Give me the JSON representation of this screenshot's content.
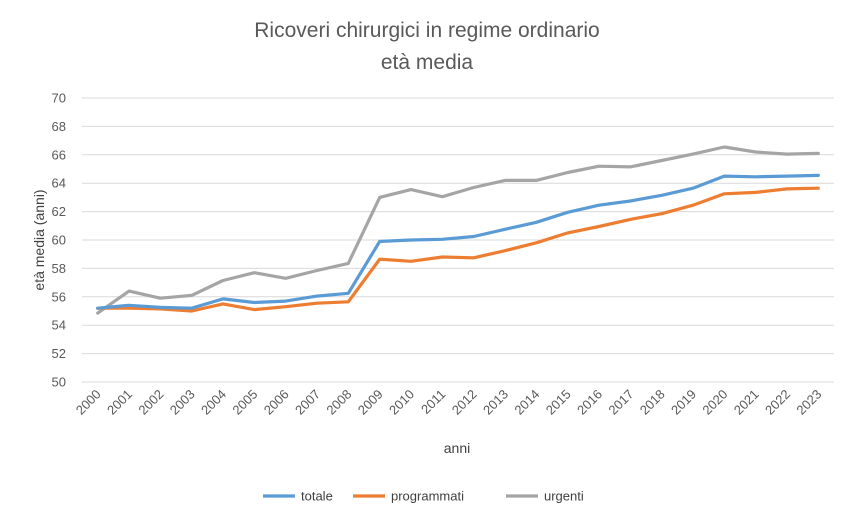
{
  "chart_data": {
    "type": "line",
    "title": "Ricoveri chirurgici in regime ordinario",
    "subtitle": "età media",
    "xlabel": "anni",
    "ylabel": "età media (anni)",
    "ylim": [
      50,
      70
    ],
    "yticks": [
      50,
      52,
      54,
      56,
      58,
      60,
      62,
      64,
      66,
      68,
      70
    ],
    "grid": true,
    "legend_position": "bottom",
    "categories": [
      "2000",
      "2001",
      "2002",
      "2003",
      "2004",
      "2005",
      "2006",
      "2007",
      "2008",
      "2009",
      "2010",
      "2011",
      "2012",
      "2013",
      "2014",
      "2015",
      "2016",
      "2017",
      "2018",
      "2019",
      "2020",
      "2021",
      "2022",
      "2023"
    ],
    "series": [
      {
        "name": "totale",
        "color": "#5B9BD5",
        "values": [
          55.2,
          55.4,
          55.25,
          55.2,
          55.85,
          55.6,
          55.7,
          56.05,
          56.25,
          59.9,
          60.0,
          60.05,
          60.25,
          60.75,
          61.25,
          61.95,
          62.45,
          62.75,
          63.15,
          63.65,
          64.5,
          64.45,
          64.5,
          64.55
        ]
      },
      {
        "name": "programmati",
        "color": "#ED7D31",
        "values": [
          55.2,
          55.2,
          55.15,
          55.0,
          55.5,
          55.1,
          55.3,
          55.55,
          55.65,
          58.65,
          58.5,
          58.8,
          58.75,
          59.25,
          59.8,
          60.5,
          60.95,
          61.45,
          61.85,
          62.45,
          63.25,
          63.35,
          63.6,
          63.65
        ]
      },
      {
        "name": "urgenti",
        "color": "#A5A5A5",
        "values": [
          54.85,
          56.4,
          55.9,
          56.1,
          57.15,
          57.7,
          57.3,
          57.85,
          58.35,
          63.0,
          63.55,
          63.05,
          63.7,
          64.2,
          64.2,
          64.75,
          65.2,
          65.15,
          65.6,
          66.05,
          66.55,
          66.2,
          66.05,
          66.1
        ]
      }
    ]
  }
}
